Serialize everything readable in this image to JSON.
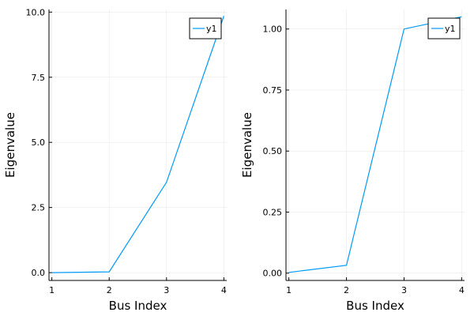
{
  "chart_data": [
    {
      "type": "line",
      "xlabel": "Bus Index",
      "ylabel": "Eigenvalue",
      "x": [
        1,
        2,
        3,
        4
      ],
      "series": [
        {
          "name": "y1",
          "values": [
            0.0,
            0.03,
            3.47,
            9.85
          ]
        }
      ],
      "xlim": [
        0.95,
        4.05
      ],
      "ylim": [
        -0.3,
        10.1
      ],
      "xticks": [
        1,
        2,
        3,
        4
      ],
      "xtick_labels": [
        "1",
        "2",
        "3",
        "4"
      ],
      "yticks": [
        0,
        2.5,
        5,
        7.5,
        10
      ],
      "ytick_labels": [
        "0.0",
        "2.5",
        "5.0",
        "7.5",
        "10.0"
      ],
      "grid": true,
      "legend": "top-right",
      "color": "#009AF9"
    },
    {
      "type": "line",
      "xlabel": "Bus Index",
      "ylabel": "Eigenvalue",
      "x": [
        1,
        2,
        3,
        4
      ],
      "series": [
        {
          "name": "y1",
          "values": [
            0.003,
            0.032,
            1.0,
            1.05
          ]
        }
      ],
      "xlim": [
        0.95,
        4.05
      ],
      "ylim": [
        -0.03,
        1.08
      ],
      "xticks": [
        1,
        2,
        3,
        4
      ],
      "xtick_labels": [
        "1",
        "2",
        "3",
        "4"
      ],
      "yticks": [
        0,
        0.25,
        0.5,
        0.75,
        1.0
      ],
      "ytick_labels": [
        "0.00",
        "0.25",
        "0.50",
        "0.75",
        "1.00"
      ],
      "grid": true,
      "legend": "top-right",
      "color": "#009AF9"
    }
  ]
}
